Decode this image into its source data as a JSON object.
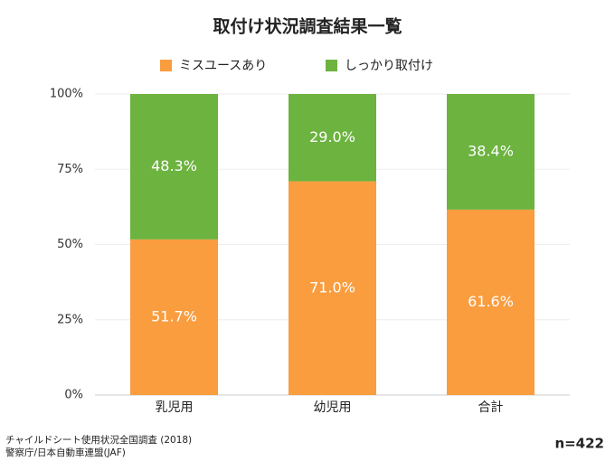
{
  "chart_data": {
    "type": "stacked_bar",
    "title": "取付け状況調査結果一覧",
    "categories": [
      "乳児用",
      "幼児用",
      "合計"
    ],
    "series": [
      {
        "name": "ミスユースあり",
        "color": "#f99d3f",
        "values": [
          51.7,
          71.0,
          61.6
        ],
        "value_labels": [
          "51.7%",
          "71.0%",
          "61.6%"
        ]
      },
      {
        "name": "しっかり取付け",
        "color": "#6cb33f",
        "values": [
          48.3,
          29.0,
          38.4
        ],
        "value_labels": [
          "48.3%",
          "29.0%",
          "38.4%"
        ]
      }
    ],
    "ylim": [
      0,
      100
    ],
    "yticks": [
      {
        "value": 0,
        "label": "0%"
      },
      {
        "value": 25,
        "label": "25%"
      },
      {
        "value": 50,
        "label": "50%"
      },
      {
        "value": 75,
        "label": "75%"
      },
      {
        "value": 100,
        "label": "100%"
      }
    ],
    "grid": true,
    "legend": "top",
    "source": [
      "チャイルドシート使用状況全国調査 (2018)",
      "警察庁/日本自動車連盟(JAF)"
    ],
    "sample_size": "n=422"
  }
}
